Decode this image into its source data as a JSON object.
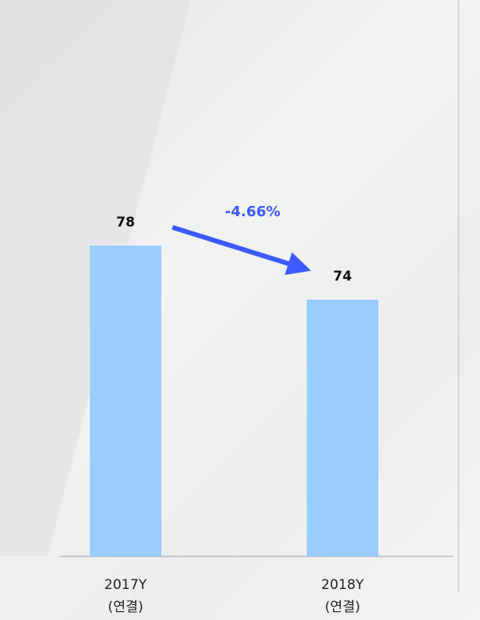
{
  "chart_data": {
    "type": "bar",
    "categories": [
      "2017Y\n(연결)",
      "2018Y\n(연결)"
    ],
    "values": [
      78,
      74
    ],
    "color": "#99ccff",
    "ylim": [
      55,
      80
    ],
    "annotation": "-4.66%",
    "annotation_color": "#3d5afe"
  }
}
